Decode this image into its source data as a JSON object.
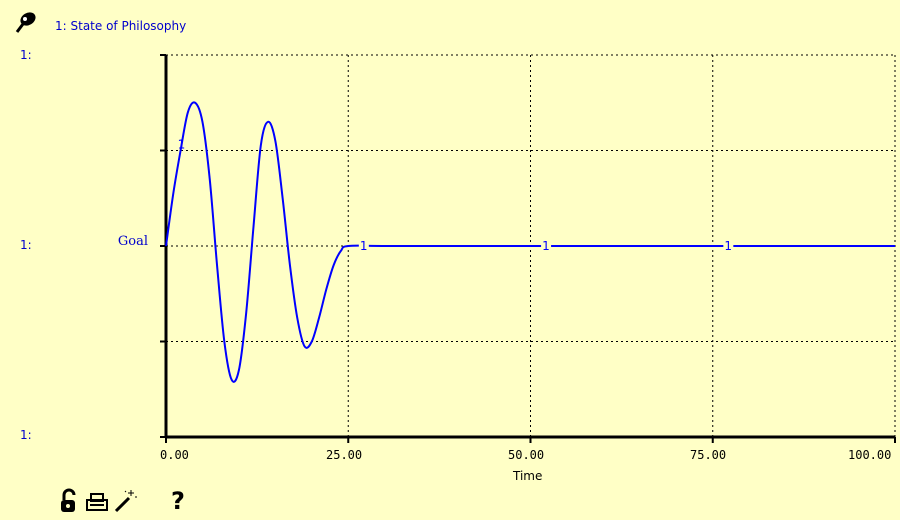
{
  "header": {
    "pin_icon": "pushpin-icon",
    "series_title": "1: State of Philosophy"
  },
  "colors": {
    "background": "#ffffc6",
    "series": "#0000ff",
    "axis": "#000000",
    "grid": "#000000",
    "label": "#0000cc"
  },
  "toolbar": {
    "items": [
      {
        "icon": "lock-icon"
      },
      {
        "icon": "printer-icon"
      },
      {
        "icon": "magic-wand-icon"
      },
      {
        "icon": "help-icon",
        "glyph": "?"
      }
    ]
  },
  "chart_data": {
    "type": "line",
    "title": "1: State of Philosophy",
    "xlabel": "Time",
    "ylabel": "",
    "xlim": [
      0,
      100
    ],
    "ylim": [
      -2,
      2
    ],
    "x_ticks": [
      "0.00",
      "25.00",
      "50.00",
      "75.00",
      "100.00"
    ],
    "x_tick_values": [
      0,
      25,
      50,
      75,
      100
    ],
    "y_tick_labels": [
      {
        "value": 2,
        "label": "1:"
      },
      {
        "value": 0,
        "label": "1:"
      },
      {
        "value": -2,
        "label": "1:"
      }
    ],
    "y_reference": {
      "value": 0,
      "label": "Goal"
    },
    "grid": true,
    "series": [
      {
        "name": "1",
        "marker_label": "1",
        "marker_x": [
          2,
          27,
          52,
          77
        ],
        "x": [
          0,
          1,
          2,
          3,
          4,
          5,
          6,
          7,
          8,
          9,
          10,
          11,
          12,
          13,
          14,
          15,
          16,
          17,
          18,
          19,
          20,
          21,
          22,
          23,
          24,
          25,
          30,
          40,
          50,
          60,
          70,
          80,
          90,
          100
        ],
        "y": [
          0,
          0.55,
          1.0,
          1.4,
          1.5,
          1.3,
          0.7,
          -0.2,
          -1.0,
          -1.4,
          -1.3,
          -0.7,
          0.2,
          1.05,
          1.3,
          1.1,
          0.5,
          -0.2,
          -0.75,
          -1.05,
          -1.0,
          -0.75,
          -0.45,
          -0.2,
          -0.05,
          0,
          0,
          0,
          0,
          0,
          0,
          0,
          0,
          0
        ]
      }
    ]
  }
}
